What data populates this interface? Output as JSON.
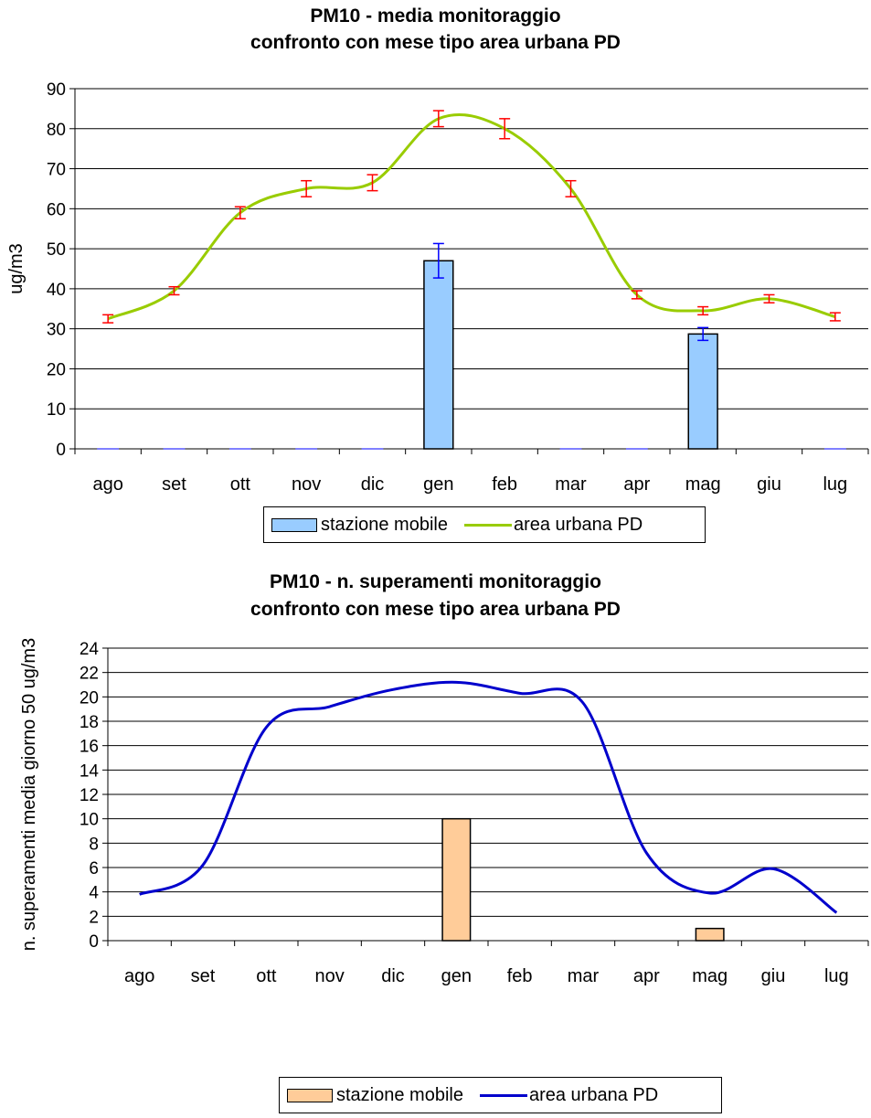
{
  "charts": [
    {
      "title_line1": "PM10 -  media monitoraggio",
      "title_line2": "confronto con mese tipo area urbana PD",
      "legend": {
        "bar": "stazione mobile",
        "line": "area urbana PD"
      },
      "colors": {
        "bar_fill": "#99CCFF",
        "bar_error": "#0000FF",
        "line": "#99CC00",
        "line_error": "#FF0000"
      }
    },
    {
      "title_line1": "PM10 - n. superamenti monitoraggio",
      "title_line2": "confronto con mese tipo area urbana PD",
      "legend": {
        "bar": "stazione mobile",
        "line": "area urbana PD"
      },
      "colors": {
        "bar_fill": "#FFCC99",
        "line": "#0000CC"
      }
    }
  ],
  "chart_data": [
    {
      "type": "bar",
      "title": "PM10 -  media monitoraggio confronto con mese tipo area urbana PD",
      "categories": [
        "ago",
        "set",
        "ott",
        "nov",
        "dic",
        "gen",
        "feb",
        "mar",
        "apr",
        "mag",
        "giu",
        "lug"
      ],
      "ylabel": "ug/m3",
      "xlabel": "",
      "ylim": [
        0,
        90
      ],
      "yticks": [
        0,
        10,
        20,
        30,
        40,
        50,
        60,
        70,
        80,
        90
      ],
      "grid": true,
      "legend_position": "bottom",
      "series": [
        {
          "name": "stazione mobile",
          "kind": "bar",
          "values": [
            0,
            0,
            0,
            0,
            0,
            47,
            null,
            0,
            0,
            28.7,
            null,
            0
          ],
          "error": [
            null,
            null,
            null,
            null,
            null,
            4.3,
            null,
            null,
            null,
            1.6,
            null,
            null
          ]
        },
        {
          "name": "area urbana PD",
          "kind": "line",
          "values": [
            32.5,
            39.5,
            59,
            65,
            66.5,
            82.5,
            80,
            65,
            38.5,
            34.5,
            37.5,
            33
          ],
          "error": [
            1,
            1,
            1.5,
            2,
            2,
            2,
            2.5,
            2,
            1,
            1,
            1,
            1
          ]
        }
      ]
    },
    {
      "type": "bar",
      "title": "PM10 - n. superamenti monitoraggio confronto con mese tipo area urbana PD",
      "categories": [
        "ago",
        "set",
        "ott",
        "nov",
        "dic",
        "gen",
        "feb",
        "mar",
        "apr",
        "mag",
        "giu",
        "lug"
      ],
      "ylabel": "n. superamenti media giorno 50 ug/m3",
      "xlabel": "",
      "ylim": [
        0,
        24
      ],
      "yticks": [
        0,
        2,
        4,
        6,
        8,
        10,
        12,
        14,
        16,
        18,
        20,
        22,
        24
      ],
      "grid": true,
      "legend_position": "bottom",
      "series": [
        {
          "name": "stazione mobile",
          "kind": "bar",
          "values": [
            null,
            null,
            null,
            null,
            null,
            10,
            null,
            null,
            null,
            1,
            null,
            null
          ]
        },
        {
          "name": "area urbana PD",
          "kind": "line",
          "values": [
            3.8,
            6.2,
            17.5,
            19.2,
            20.6,
            21.2,
            20.3,
            19.5,
            7.2,
            3.9,
            5.9,
            2.3
          ]
        }
      ]
    }
  ]
}
